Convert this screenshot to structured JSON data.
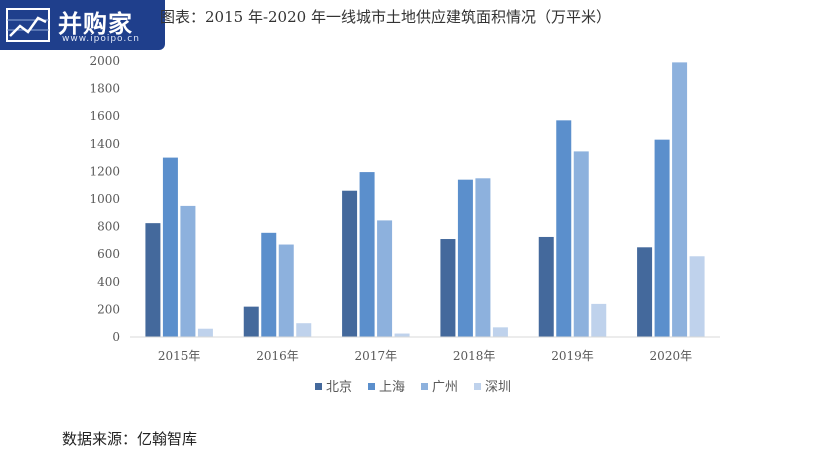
{
  "logo": {
    "name": "并购家",
    "url": "www.ipoipo.cn"
  },
  "source": "数据来源：亿翰智库",
  "colors": {
    "北京": "#44699c",
    "上海": "#5b8fcc",
    "广州": "#8db1dd",
    "深圳": "#bfd2ec"
  },
  "chart_data": {
    "type": "bar",
    "title": "图表：2015 年-2020 年一线城市土地供应建筑面积情况（万平米）",
    "categories": [
      "2015年",
      "2016年",
      "2017年",
      "2018年",
      "2019年",
      "2020年"
    ],
    "series": [
      {
        "name": "北京",
        "values": [
          825,
          220,
          1060,
          710,
          725,
          650
        ]
      },
      {
        "name": "上海",
        "values": [
          1300,
          755,
          1195,
          1140,
          1570,
          1430
        ]
      },
      {
        "name": "广州",
        "values": [
          950,
          670,
          845,
          1150,
          1345,
          1990
        ]
      },
      {
        "name": "深圳",
        "values": [
          60,
          100,
          25,
          70,
          240,
          585
        ]
      }
    ],
    "ylim": [
      0,
      2000
    ],
    "yticks": [
      "0",
      "200",
      "400",
      "600",
      "800",
      "1000",
      "1200",
      "1400",
      "1600",
      "1800",
      "2000"
    ],
    "grid": false,
    "legend_position": "bottom"
  }
}
